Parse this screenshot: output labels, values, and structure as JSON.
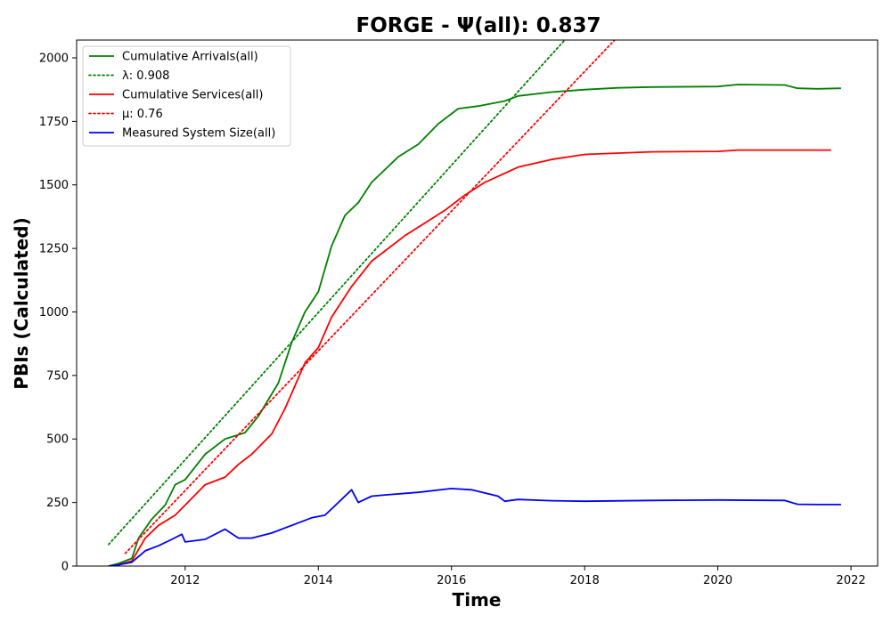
{
  "chart_data": {
    "type": "line",
    "title": "FORGE -  Ψ(all): 0.837",
    "xlabel": "Time",
    "ylabel": "PBIs (Calculated)",
    "xlim": [
      2010.37,
      2022.4
    ],
    "ylim": [
      0,
      2070
    ],
    "xticks": [
      2012,
      2014,
      2016,
      2018,
      2020,
      2022
    ],
    "xtick_labels": [
      "2012",
      "2014",
      "2016",
      "2018",
      "2020",
      "2022"
    ],
    "yticks": [
      0,
      250,
      500,
      750,
      1000,
      1250,
      1500,
      1750,
      2000
    ],
    "ytick_labels": [
      "0",
      "250",
      "500",
      "750",
      "1000",
      "1250",
      "1500",
      "1750",
      "2000"
    ],
    "grid": false,
    "legend_position": "top-left",
    "series": [
      {
        "name": "Cumulative Arrivals(all)",
        "style": "solid",
        "color": "#008000",
        "x": [
          2010.85,
          2011.0,
          2011.2,
          2011.3,
          2011.5,
          2011.7,
          2011.85,
          2012.0,
          2012.3,
          2012.6,
          2012.9,
          2013.1,
          2013.4,
          2013.6,
          2013.8,
          2014.0,
          2014.2,
          2014.4,
          2014.6,
          2014.8,
          2015.0,
          2015.2,
          2015.5,
          2015.8,
          2016.1,
          2016.4,
          2016.8,
          2017.0,
          2017.5,
          2018.0,
          2018.5,
          2019.0,
          2020.0,
          2020.3,
          2021.0,
          2021.2,
          2021.5,
          2021.85
        ],
        "values": [
          0,
          10,
          30,
          110,
          185,
          240,
          320,
          340,
          440,
          500,
          525,
          590,
          720,
          880,
          1000,
          1080,
          1260,
          1380,
          1430,
          1510,
          1560,
          1610,
          1660,
          1740,
          1800,
          1810,
          1830,
          1850,
          1865,
          1875,
          1882,
          1885,
          1887,
          1895,
          1893,
          1880,
          1878,
          1880
        ]
      },
      {
        "name": "λ: 0.908",
        "style": "dotted",
        "color": "#008000",
        "x": [
          2010.85,
          2017.7
        ],
        "values": [
          85,
          2070
        ]
      },
      {
        "name": "Cumulative Services(all)",
        "style": "solid",
        "color": "#ff0000",
        "x": [
          2010.85,
          2011.0,
          2011.2,
          2011.4,
          2011.6,
          2011.85,
          2012.0,
          2012.3,
          2012.6,
          2012.8,
          2013.0,
          2013.3,
          2013.5,
          2013.8,
          2014.0,
          2014.2,
          2014.5,
          2014.8,
          2015.0,
          2015.3,
          2015.6,
          2015.9,
          2016.2,
          2016.5,
          2017.0,
          2017.5,
          2018.0,
          2019.0,
          2020.0,
          2020.3,
          2021.0,
          2021.7
        ],
        "values": [
          0,
          5,
          20,
          110,
          160,
          200,
          240,
          320,
          350,
          400,
          440,
          520,
          620,
          800,
          860,
          980,
          1100,
          1200,
          1240,
          1300,
          1350,
          1400,
          1460,
          1510,
          1570,
          1600,
          1620,
          1630,
          1632,
          1637,
          1637,
          1637
        ]
      },
      {
        "name": "μ: 0.76",
        "style": "dotted",
        "color": "#ff0000",
        "x": [
          2011.1,
          2018.45
        ],
        "values": [
          50,
          2070
        ]
      },
      {
        "name": "Measured System Size(all)",
        "style": "solid",
        "color": "#0000ff",
        "x": [
          2010.85,
          2011.0,
          2011.2,
          2011.4,
          2011.6,
          2011.8,
          2011.95,
          2012.0,
          2012.3,
          2012.6,
          2012.8,
          2013.0,
          2013.3,
          2013.6,
          2013.9,
          2014.1,
          2014.3,
          2014.5,
          2014.6,
          2014.8,
          2015.0,
          2015.5,
          2016.0,
          2016.3,
          2016.7,
          2016.8,
          2017.0,
          2017.5,
          2018.0,
          2019.0,
          2020.0,
          2021.0,
          2021.2,
          2021.5,
          2021.85
        ],
        "values": [
          0,
          5,
          15,
          60,
          80,
          105,
          125,
          95,
          105,
          145,
          110,
          110,
          130,
          160,
          190,
          200,
          250,
          300,
          250,
          275,
          280,
          290,
          305,
          300,
          275,
          255,
          262,
          257,
          255,
          258,
          260,
          258,
          243,
          242,
          242
        ]
      }
    ]
  }
}
